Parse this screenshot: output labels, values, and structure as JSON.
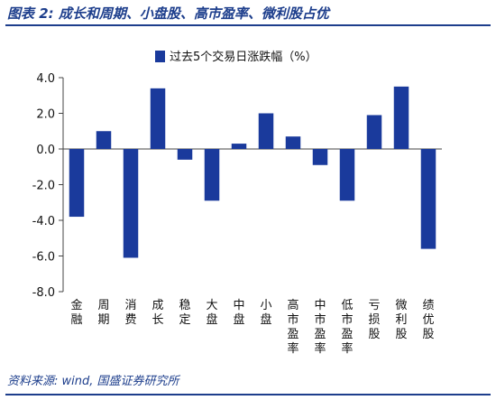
{
  "figure": {
    "title": "图表 2: 成长和周期、小盘股、高市盈率、微利股占优",
    "source": "资料来源: wind, 国盛证券研究所"
  },
  "colors": {
    "bar": "#1a3a9c",
    "accent": "#1d3e8c",
    "axis": "#444444"
  },
  "chart_data": {
    "type": "bar",
    "categories": [
      "金融",
      "周期",
      "消费",
      "成长",
      "稳定",
      "大盘",
      "中盘",
      "小盘",
      "高市盈率",
      "中市盈率",
      "低市盈率",
      "亏损股",
      "微利股",
      "绩优股"
    ],
    "series": [
      {
        "name": "过去5个交易日涨跌幅（%）",
        "values": [
          -3.8,
          1.0,
          -6.1,
          3.4,
          -0.6,
          -2.9,
          0.3,
          2.0,
          0.7,
          -0.9,
          -2.9,
          1.9,
          3.5,
          -5.6
        ]
      }
    ],
    "ylim": [
      -8.0,
      4.0
    ],
    "yticks": [
      "4.0",
      "2.0",
      "0.0",
      "-2.0",
      "-4.0",
      "-6.0",
      "-8.0"
    ],
    "grid": false,
    "legend": "top-center"
  }
}
